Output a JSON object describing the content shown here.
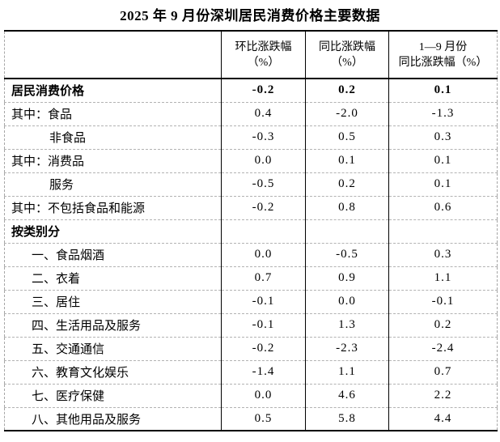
{
  "page": {
    "title": "2025 年 9 月份深圳居民消费价格主要数据"
  },
  "table": {
    "header": {
      "col1_line1": "",
      "col1_line2": "",
      "col2_line1": "环比涨跌幅",
      "col2_line2": "（%）",
      "col3_line1": "同比涨跌幅",
      "col3_line2": "（%）",
      "col4_line1": "1—9 月份",
      "col4_line2": "同比涨跌幅（%）"
    },
    "rows": [
      {
        "label": "居民消费价格",
        "indent": 0,
        "bold": true,
        "mom": "-0.2",
        "yoy": "0.2",
        "ytd": "0.1"
      },
      {
        "label": "其中：食品",
        "indent": 0,
        "bold": false,
        "mom": "0.4",
        "yoy": "-2.0",
        "ytd": "-1.3"
      },
      {
        "label": "非食品",
        "indent": 2,
        "bold": false,
        "mom": "-0.3",
        "yoy": "0.5",
        "ytd": "0.3"
      },
      {
        "label": "其中：消费品",
        "indent": 0,
        "bold": false,
        "mom": "0.0",
        "yoy": "0.1",
        "ytd": "0.1"
      },
      {
        "label": "服务",
        "indent": 2,
        "bold": false,
        "mom": "-0.5",
        "yoy": "0.2",
        "ytd": "0.1"
      },
      {
        "label": "其中：不包括食品和能源",
        "indent": 0,
        "bold": false,
        "mom": "-0.2",
        "yoy": "0.8",
        "ytd": "0.6"
      },
      {
        "label": "按类别分",
        "indent": 0,
        "bold": true,
        "mom": "",
        "yoy": "",
        "ytd": ""
      },
      {
        "label": "一、食品烟酒",
        "indent": 1,
        "bold": false,
        "mom": "0.0",
        "yoy": "-0.5",
        "ytd": "0.3"
      },
      {
        "label": "二、衣着",
        "indent": 1,
        "bold": false,
        "mom": "0.7",
        "yoy": "0.9",
        "ytd": "1.1"
      },
      {
        "label": "三、居住",
        "indent": 1,
        "bold": false,
        "mom": "-0.1",
        "yoy": "0.0",
        "ytd": "-0.1"
      },
      {
        "label": "四、生活用品及服务",
        "indent": 1,
        "bold": false,
        "mom": "-0.1",
        "yoy": "1.3",
        "ytd": "0.2"
      },
      {
        "label": "五、交通通信",
        "indent": 1,
        "bold": false,
        "mom": "-0.2",
        "yoy": "-2.3",
        "ytd": "-2.4"
      },
      {
        "label": "六、教育文化娱乐",
        "indent": 1,
        "bold": false,
        "mom": "-1.4",
        "yoy": "1.1",
        "ytd": "0.7"
      },
      {
        "label": "七、医疗保健",
        "indent": 1,
        "bold": false,
        "mom": "0.0",
        "yoy": "4.6",
        "ytd": "2.2"
      },
      {
        "label": "八、其他用品及服务",
        "indent": 1,
        "bold": false,
        "mom": "0.5",
        "yoy": "5.8",
        "ytd": "4.4"
      }
    ]
  }
}
